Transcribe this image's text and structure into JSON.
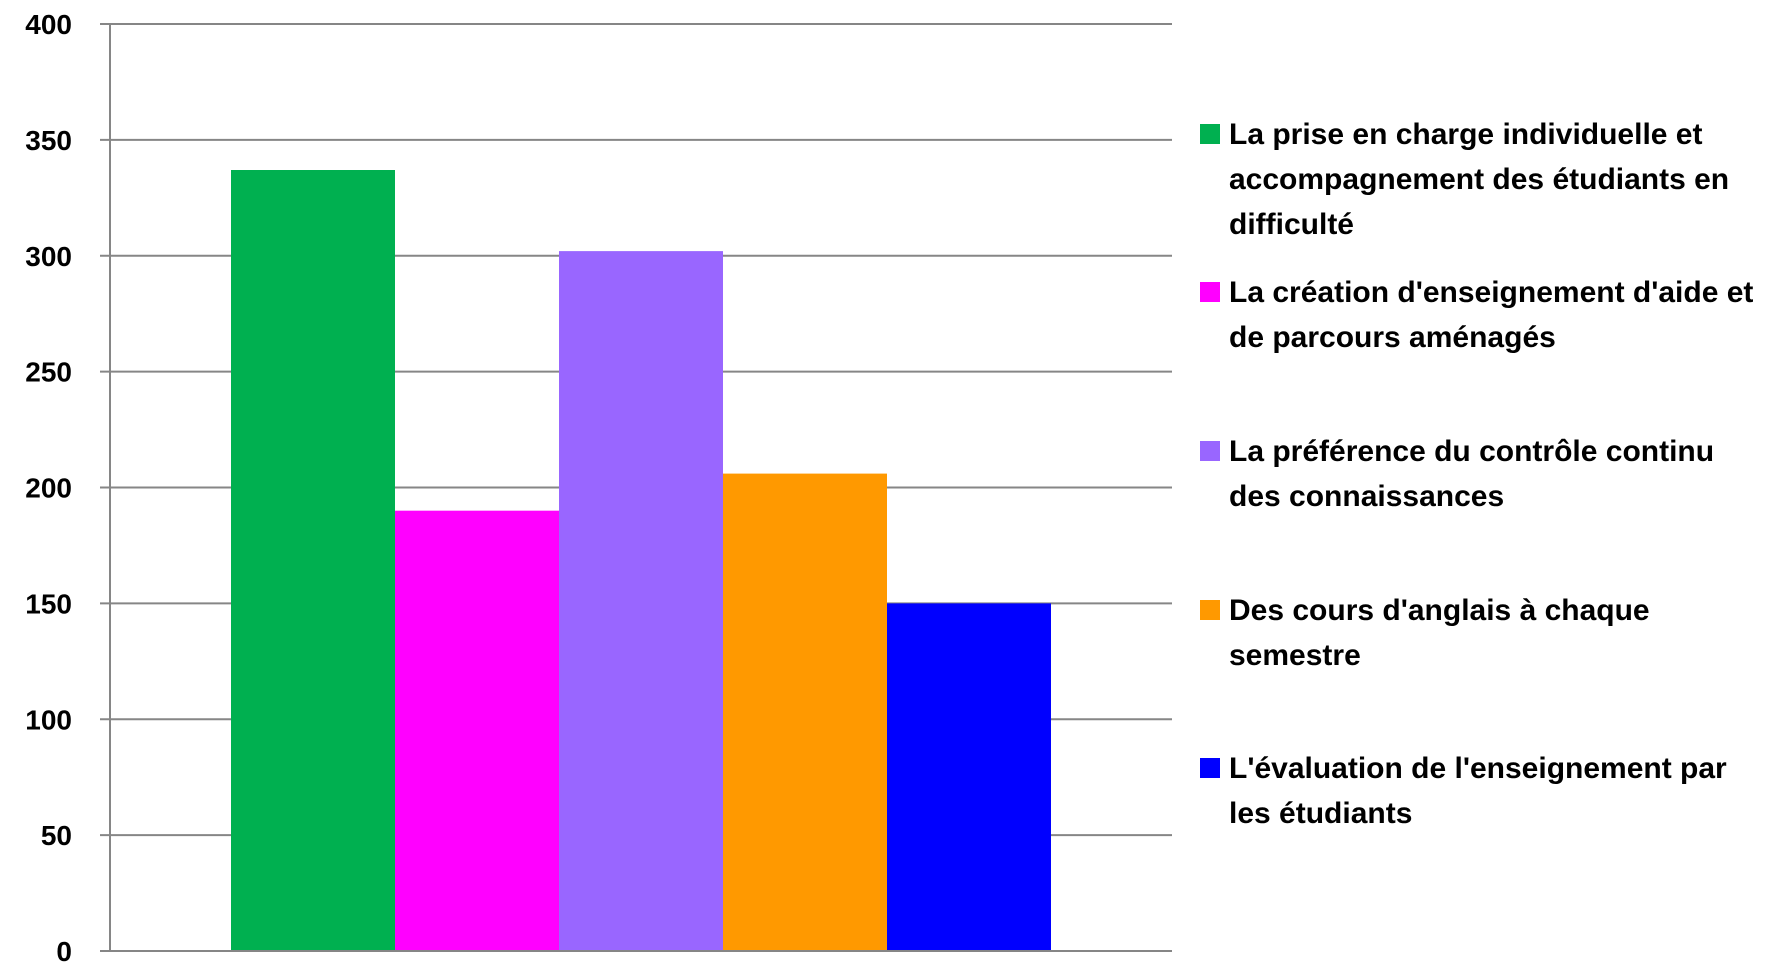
{
  "chart_data": {
    "type": "bar",
    "title": "",
    "xlabel": "",
    "ylabel": "",
    "ylim": [
      0,
      400
    ],
    "yticks": [
      0,
      50,
      100,
      150,
      200,
      250,
      300,
      350,
      400
    ],
    "grid": true,
    "legend_position": "right",
    "series": [
      {
        "name": "La prise en charge individuelle et accompagnement des étudiants en difficulté",
        "value": 337,
        "color": "#00b050"
      },
      {
        "name": "La création d'enseignement d'aide et de parcours aménagés",
        "value": 190,
        "color": "#ff00ff"
      },
      {
        "name": "La préférence du contrôle continu des connaissances",
        "value": 302,
        "color": "#9966ff"
      },
      {
        "name": "Des cours d'anglais à chaque semestre",
        "value": 206,
        "color": "#ff9900"
      },
      {
        "name": "L'évaluation de l'enseignement par les étudiants",
        "value": 150,
        "color": "#0000ff"
      }
    ]
  }
}
